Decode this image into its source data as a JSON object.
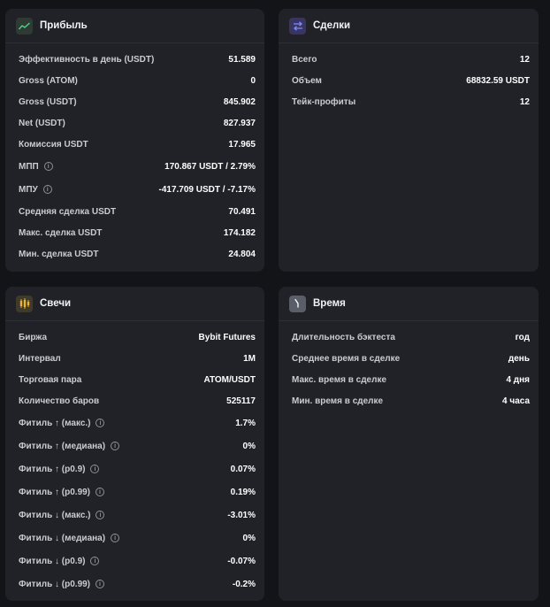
{
  "profit": {
    "title": "Прибыль",
    "icon": "trend-line-icon",
    "rows": [
      {
        "label": "Эффективность в день (USDT)",
        "value": "51.589",
        "info": false
      },
      {
        "label": "Gross (ATOM)",
        "value": "0",
        "info": false
      },
      {
        "label": "Gross (USDT)",
        "value": "845.902",
        "info": false
      },
      {
        "label": "Net (USDT)",
        "value": "827.937",
        "info": false
      },
      {
        "label": "Комиссия USDT",
        "value": "17.965",
        "info": false
      },
      {
        "label": "МПП",
        "value": "170.867 USDT / 2.79%",
        "info": true
      },
      {
        "label": "МПУ",
        "value": "-417.709 USDT / -7.17%",
        "info": true
      },
      {
        "label": "Средняя сделка USDT",
        "value": "70.491",
        "info": false
      },
      {
        "label": "Макс. сделка USDT",
        "value": "174.182",
        "info": false
      },
      {
        "label": "Мин. сделка USDT",
        "value": "24.804",
        "info": false
      }
    ]
  },
  "trades": {
    "title": "Сделки",
    "icon": "exchange-arrows-icon",
    "rows": [
      {
        "label": "Всего",
        "value": "12"
      },
      {
        "label": "Объем",
        "value": "68832.59 USDT"
      },
      {
        "label": "Тейк-профиты",
        "value": "12"
      }
    ]
  },
  "candles": {
    "title": "Свечи",
    "icon": "candlestick-icon",
    "rows": [
      {
        "label": "Биржа",
        "value": "Bybit Futures",
        "info": false
      },
      {
        "label": "Интервал",
        "value": "1M",
        "info": false
      },
      {
        "label": "Торговая пара",
        "value": "ATOM/USDT",
        "info": false
      },
      {
        "label": "Количество баров",
        "value": "525117",
        "info": false
      },
      {
        "label": "Фитиль ↑ (макс.)",
        "value": "1.7%",
        "info": true
      },
      {
        "label": "Фитиль ↑ (медиана)",
        "value": "0%",
        "info": true
      },
      {
        "label": "Фитиль ↑ (p0.9)",
        "value": "0.07%",
        "info": true
      },
      {
        "label": "Фитиль ↑ (p0.99)",
        "value": "0.19%",
        "info": true
      },
      {
        "label": "Фитиль ↓ (макс.)",
        "value": "-3.01%",
        "info": true
      },
      {
        "label": "Фитиль ↓ (медиана)",
        "value": "0%",
        "info": true
      },
      {
        "label": "Фитиль ↓ (p0.9)",
        "value": "-0.07%",
        "info": true
      },
      {
        "label": "Фитиль ↓ (p0.99)",
        "value": "-0.2%",
        "info": true
      }
    ]
  },
  "time": {
    "title": "Время",
    "icon": "clock-icon",
    "rows": [
      {
        "label": "Длительность бэктеста",
        "value": "год"
      },
      {
        "label": "Среднее время в сделке",
        "value": "день"
      },
      {
        "label": "Макс. время в сделке",
        "value": "4 дня"
      },
      {
        "label": "Мин. время в сделке",
        "value": "4 часа"
      }
    ]
  },
  "colors": {
    "background": "#131418",
    "card": "#202228",
    "profit_icon_bg": "#2f3a34",
    "trades_icon_bg": "#3a3560",
    "candles_icon_bg": "#3e3a2c",
    "time_icon_bg": "#5a5e68"
  }
}
